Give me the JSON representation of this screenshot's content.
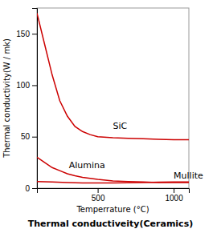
{
  "chart_data": {
    "type": "line",
    "title": "Thermal conductiveity(Ceramics)",
    "x_label": "Temperrature (°C)",
    "y_label": "Thermal conductivity(W / mk)",
    "xlim": [
      100,
      1100
    ],
    "ylim": [
      0,
      175
    ],
    "xticks": [
      500,
      1000
    ],
    "yticks": [
      0,
      50,
      100,
      150
    ],
    "grid": false,
    "series": [
      {
        "color": "#cc0000",
        "x": [
          100,
          150,
          200,
          250,
          300,
          350,
          400,
          450,
          500,
          600,
          700,
          800,
          900,
          1000,
          1100
        ],
        "values": [
          170,
          140,
          110,
          85,
          70,
          60,
          55,
          52,
          50,
          49,
          48.5,
          48,
          47.5,
          47,
          47
        ]
      },
      {
        "color": "#cc0000",
        "x": [
          100,
          150,
          200,
          250,
          300,
          350,
          400,
          450,
          500,
          600,
          700,
          800,
          900,
          1000,
          1100
        ],
        "values": [
          30,
          25,
          20,
          17,
          14,
          12,
          10.5,
          9.5,
          8.5,
          7,
          6.5,
          6,
          5.5,
          5.5,
          5.5
        ]
      },
      {
        "color": "#cc0000",
        "x": [
          100,
          200,
          300,
          400,
          500,
          600,
          700,
          800,
          900,
          1000,
          1100
        ],
        "values": [
          6.5,
          6,
          5.5,
          5,
          5,
          5,
          5.2,
          5.5,
          5.8,
          6,
          6
        ]
      }
    ],
    "annotations": [
      {
        "text": "SiC",
        "x": 600,
        "y": 56
      },
      {
        "text": "Alumina",
        "x": 310,
        "y": 18
      },
      {
        "text": "Mullite",
        "x": 1000,
        "y": 7.5
      }
    ]
  }
}
